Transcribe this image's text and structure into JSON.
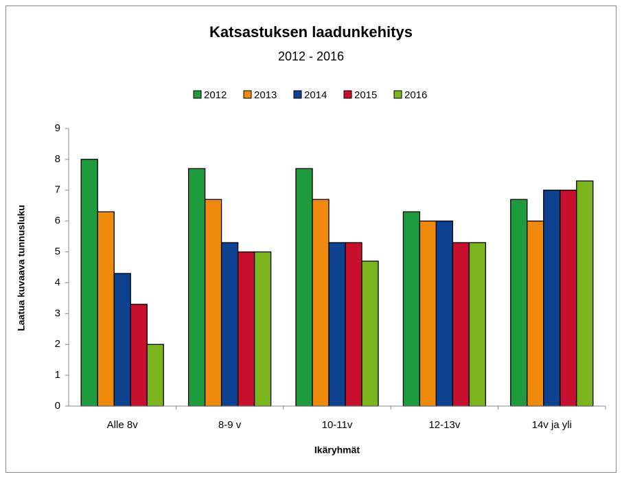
{
  "chart_data": {
    "type": "bar",
    "title": "Katsastuksen laadunkehitys",
    "subtitle": "2012 - 2016",
    "x_label": "Ikäryhmät",
    "y_label": "Laatua kuvaava  tunnusluku",
    "categories": [
      "Alle 8v",
      "8-9 v",
      "10-11v",
      "12-13v",
      "14v ja yli"
    ],
    "series": [
      {
        "name": "2012",
        "color": "#1e9b3c",
        "values": [
          8.0,
          7.7,
          7.7,
          6.3,
          6.7
        ]
      },
      {
        "name": "2013",
        "color": "#f08a0c",
        "values": [
          6.3,
          6.7,
          6.7,
          6.0,
          6.0
        ]
      },
      {
        "name": "2014",
        "color": "#0d4291",
        "values": [
          4.3,
          5.3,
          5.3,
          6.0,
          7.0
        ]
      },
      {
        "name": "2015",
        "color": "#c8102e",
        "values": [
          3.3,
          5.0,
          5.3,
          5.3,
          7.0
        ]
      },
      {
        "name": "2016",
        "color": "#7ab51d",
        "values": [
          2.0,
          5.0,
          4.7,
          5.3,
          7.3
        ]
      }
    ],
    "ylim": [
      0,
      9
    ],
    "yticks": [
      0,
      1,
      2,
      3,
      4,
      5,
      6,
      7,
      8,
      9
    ],
    "legend": "top",
    "grid": false
  }
}
